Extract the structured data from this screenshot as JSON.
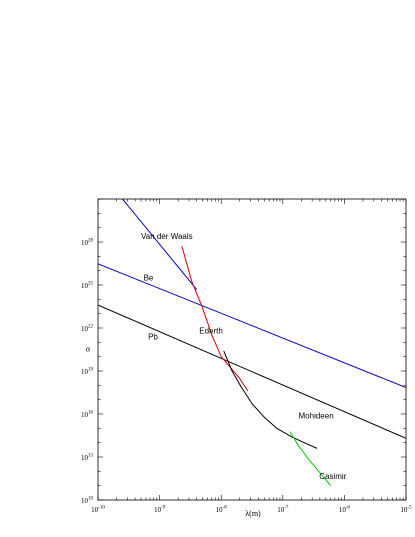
{
  "chart_data": {
    "type": "line",
    "title": "",
    "xlabel": "λ(m)",
    "ylabel": "α",
    "x_scale": "log",
    "y_scale": "log",
    "xlim": [
      1e-10,
      1e-05
    ],
    "ylim": [
      10000000000.0,
      1e+31
    ],
    "grid": false,
    "x_ticks": [
      {
        "base": "10",
        "exp": "-10",
        "value": 1e-10
      },
      {
        "base": "10",
        "exp": "-9",
        "value": 1e-09
      },
      {
        "base": "10",
        "exp": "-8",
        "value": 1e-08
      },
      {
        "base": "10",
        "exp": "-7",
        "value": 1e-07
      },
      {
        "base": "10",
        "exp": "-6",
        "value": 1e-06
      },
      {
        "base": "10",
        "exp": "-5",
        "value": 1e-05
      }
    ],
    "y_ticks": [
      {
        "base": "10",
        "exp": "10",
        "value": 10000000000.0
      },
      {
        "base": "10",
        "exp": "13",
        "value": 10000000000000.0
      },
      {
        "base": "10",
        "exp": "16",
        "value": 1e+16
      },
      {
        "base": "10",
        "exp": "19",
        "value": 1e+19
      },
      {
        "base": "10",
        "exp": "22",
        "value": 1e+22
      },
      {
        "base": "10",
        "exp": "25",
        "value": 1e+25
      },
      {
        "base": "10",
        "exp": "28",
        "value": 1e+28
      }
    ],
    "series": [
      {
        "name": "Van der Waals",
        "color": "#0000cc",
        "x": [
          2.5e-10,
          4e-09
        ],
        "y": [
          1e+31,
          4.8e+24
        ]
      },
      {
        "name": "Be",
        "color": "#0000cc",
        "x": [
          1e-10,
          1e-05
        ],
        "y": [
          3e+26,
          7e+17
        ]
      },
      {
        "name": "Pb",
        "color": "#000000",
        "x": [
          1e-10,
          1e-05
        ],
        "y": [
          4e+23,
          200000000000000.0
        ]
      },
      {
        "name": "Ederth",
        "color": "#dd0000",
        "x": [
          2.3e-09,
          3.3e-09,
          4.9e-09,
          7.1e-09,
          1e-08,
          1.4e-08,
          2e-08,
          2.7e-08
        ],
        "y": [
          5e+27,
          2e+25,
          3e+23,
          3e+21,
          1e+20,
          1.8e+19,
          3e+18,
          4e+17
        ]
      },
      {
        "name": "Mohideen",
        "color": "#000000",
        "x": [
          1.1e-08,
          1.5e-08,
          2.1e-08,
          3.2e-08,
          5e-08,
          8e-08,
          1.4e-07,
          2.5e-07,
          3.6e-07
        ],
        "y": [
          2.5e+20,
          1e+19,
          8e+17,
          5e+16,
          6000000000000000.0,
          1000000000000000.0,
          250000000000000.0,
          80000000000000.0,
          40000000000000.0
        ]
      },
      {
        "name": "Casimir",
        "color": "#00cc00",
        "x": [
          1.3e-07,
          1.8e-07,
          2.7e-07,
          4e-07,
          6e-07
        ],
        "y": [
          600000000000000.0,
          60000000000000.0,
          6000000000000.0,
          800000000000.0,
          100000000000.0
        ]
      }
    ],
    "annotations": [
      {
        "text": "Van der Waals",
        "x": 5e-10,
        "y": 1.6e+28
      },
      {
        "text": "Be",
        "x": 5.5e-10,
        "y": 2e+25
      },
      {
        "text": "Ederth",
        "x": 4.4e-09,
        "y": 4e+21
      },
      {
        "text": "Pb",
        "x": 6.5e-10,
        "y": 1.6e+21
      },
      {
        "text": "Mohideen",
        "x": 1.8e-07,
        "y": 5000000000000000.0
      },
      {
        "text": "Casimir",
        "x": 3.9e-07,
        "y": 300000000000.0
      }
    ]
  }
}
